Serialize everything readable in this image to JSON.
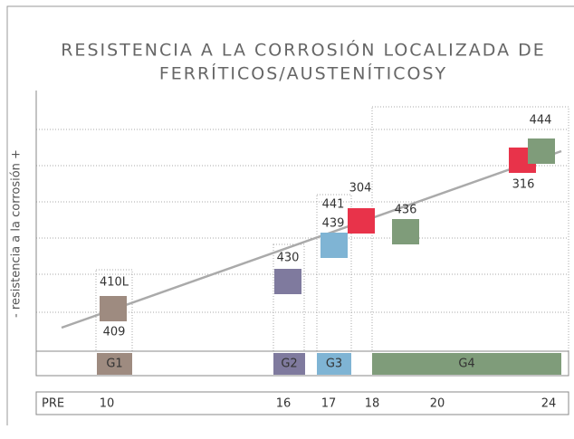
{
  "title_lines": [
    "RESISTENCIA A LA CORROSIÓN LOCALIZADA DE",
    "FERRÍTICOS/AUSTENÍTICOSY"
  ],
  "y_axis_label": "- resistencia a la corrosión +",
  "grades": [
    {
      "label": "410L",
      "color": "#9e8b80"
    },
    {
      "label": "409",
      "color": "#9e8b80"
    },
    {
      "label": "430",
      "color": "#7f7a9e"
    },
    {
      "label": "441",
      "color": "#7fb4d4"
    },
    {
      "label": "439",
      "color": "#7fb4d4"
    },
    {
      "label": "304",
      "color": "#e8334a"
    },
    {
      "label": "436",
      "color": "#7f9c7a"
    },
    {
      "label": "316",
      "color": "#e8334a"
    },
    {
      "label": "444",
      "color": "#7f9c7a"
    }
  ],
  "groups": [
    {
      "label": "G1",
      "color": "#9e8b80"
    },
    {
      "label": "G2",
      "color": "#7f7a9e"
    },
    {
      "label": "G3",
      "color": "#7fb4d4"
    },
    {
      "label": "G4",
      "color": "#7f9c7a"
    }
  ],
  "pre_label": "PRE",
  "pre_values": [
    "10",
    "16",
    "17",
    "18",
    "20",
    "24"
  ]
}
